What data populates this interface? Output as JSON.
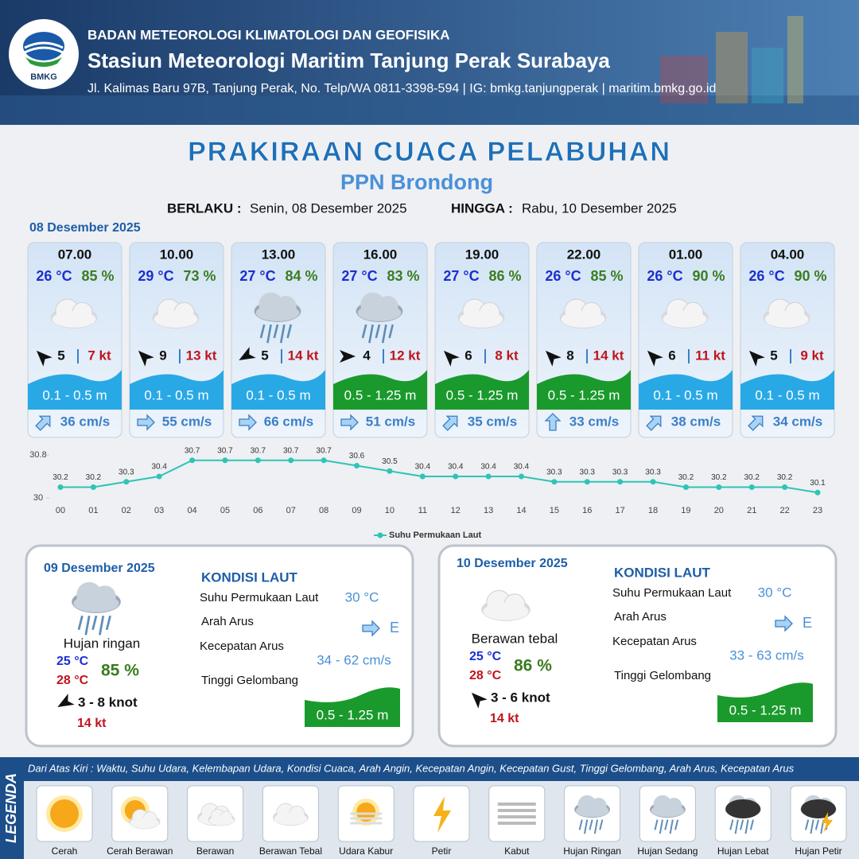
{
  "header": {
    "logo": "BMKG",
    "organization": "BADAN METEOROLOGI KLIMATOLOGI DAN GEOFISIKA",
    "station": "Stasiun Meteorologi Maritim Tanjung Perak Surabaya",
    "address": "Jl. Kalimas Baru 97B, Tanjung Perak, No. Telp/WA 0811-3398-594 | IG: bmkg.tanjungperak | maritim.bmkg.go.id"
  },
  "title": "PRAKIRAAN CUACA PELABUHAN",
  "subtitle": "PPN Brondong",
  "validity": {
    "from_label": "BERLAKU :",
    "from": "Senin, 08 Desember 2025",
    "to_label": "HINGGA :",
    "to": "Rabu, 10 Desember 2025"
  },
  "day1": {
    "date": "08 Desember 2025",
    "cards": [
      {
        "time": "07.00",
        "temp": "26 °C",
        "humidity": "85 %",
        "wind": "5",
        "gust": "7 kt",
        "wave": "0.1 - 0.5 m",
        "wave_color": "#29a8e6",
        "current": "36 cm/s"
      },
      {
        "time": "10.00",
        "temp": "29 °C",
        "humidity": "73 %",
        "wind": "9",
        "gust": "13 kt",
        "wave": "0.1 - 0.5 m",
        "wave_color": "#29a8e6",
        "current": "55 cm/s"
      },
      {
        "time": "13.00",
        "temp": "27 °C",
        "humidity": "84 %",
        "wind": "5",
        "gust": "14 kt",
        "wave": "0.1 - 0.5 m",
        "wave_color": "#29a8e6",
        "current": "66 cm/s"
      },
      {
        "time": "16.00",
        "temp": "27 °C",
        "humidity": "83 %",
        "wind": "4",
        "gust": "12 kt",
        "wave": "0.5 - 1.25 m",
        "wave_color": "#1a9a2c",
        "current": "51 cm/s"
      },
      {
        "time": "19.00",
        "temp": "27 °C",
        "humidity": "86 %",
        "wind": "6",
        "gust": "8 kt",
        "wave": "0.5 - 1.25 m",
        "wave_color": "#1a9a2c",
        "current": "35 cm/s"
      },
      {
        "time": "22.00",
        "temp": "26 °C",
        "humidity": "85 %",
        "wind": "8",
        "gust": "14 kt",
        "wave": "0.5 - 1.25 m",
        "wave_color": "#1a9a2c",
        "current": "33 cm/s"
      },
      {
        "time": "01.00",
        "temp": "26 °C",
        "humidity": "90 %",
        "wind": "6",
        "gust": "11 kt",
        "wave": "0.1 - 0.5 m",
        "wave_color": "#29a8e6",
        "current": "38 cm/s"
      },
      {
        "time": "04.00",
        "temp": "26 °C",
        "humidity": "90 %",
        "wind": "5",
        "gust": "9 kt",
        "wave": "0.1 - 0.5 m",
        "wave_color": "#29a8e6",
        "current": "34 cm/s"
      }
    ]
  },
  "chart_data": {
    "type": "line",
    "categories": [
      "00",
      "01",
      "02",
      "03",
      "04",
      "05",
      "06",
      "07",
      "08",
      "09",
      "10",
      "11",
      "12",
      "13",
      "14",
      "15",
      "16",
      "17",
      "18",
      "19",
      "20",
      "21",
      "22",
      "23"
    ],
    "series": [
      {
        "name": "Suhu Permukaan Laut",
        "color": "#2ec4b6",
        "values": [
          30.2,
          30.2,
          30.3,
          30.4,
          30.7,
          30.7,
          30.7,
          30.7,
          30.7,
          30.6,
          30.5,
          30.4,
          30.4,
          30.4,
          30.4,
          30.3,
          30.3,
          30.3,
          30.3,
          30.2,
          30.2,
          30.2,
          30.2,
          30.1
        ]
      }
    ],
    "ylim": [
      30,
      30.8
    ],
    "yticks": [
      30,
      30.8
    ],
    "legend": "bottom"
  },
  "days": [
    {
      "date": "09 Desember 2025",
      "condition": "Hujan ringan",
      "temp_min": "25 °C",
      "temp_max": "28 °C",
      "humidity": "85 %",
      "wind": "3 - 8 knot",
      "gust": "14 kt",
      "sea_title": "KONDISI LAUT",
      "sst_label": "Suhu Permukaan Laut",
      "sst": "30 °C",
      "current_dir_label": "Arah Arus",
      "current_dir": "E",
      "current_speed_label": "Kecepatan Arus",
      "current_speed": "34 - 62 cm/s",
      "wave_label": "Tinggi Gelombang",
      "wave": "0.5 - 1.25 m"
    },
    {
      "date": "10 Desember 2025",
      "condition": "Berawan tebal",
      "temp_min": "25 °C",
      "temp_max": "28 °C",
      "humidity": "86 %",
      "wind": "3 - 6 knot",
      "gust": "14 kt",
      "sea_title": "KONDISI LAUT",
      "sst_label": "Suhu Permukaan Laut",
      "sst": "30 °C",
      "current_dir_label": "Arah Arus",
      "current_dir": "E",
      "current_speed_label": "Kecepatan Arus",
      "current_speed": "33 - 63 cm/s",
      "wave_label": "Tinggi Gelombang",
      "wave": "0.5 - 1.25 m"
    }
  ],
  "legend": {
    "title": "LEGENDA",
    "description": "Dari Atas Kiri : Waktu, Suhu Udara, Kelembapan Udara, Kondisi Cuaca, Arah Angin, Kecepatan Angin, Kecepatan Gust, Tinggi Gelombang, Arah Arus, Kecepatan Arus",
    "items": [
      "Cerah",
      "Cerah Berawan",
      "Berawan",
      "Berawan Tebal",
      "Udara Kabur",
      "Petir",
      "Kabut",
      "Hujan Ringan",
      "Hujan Sedang",
      "Hujan Lebat",
      "Hujan Petir"
    ]
  }
}
